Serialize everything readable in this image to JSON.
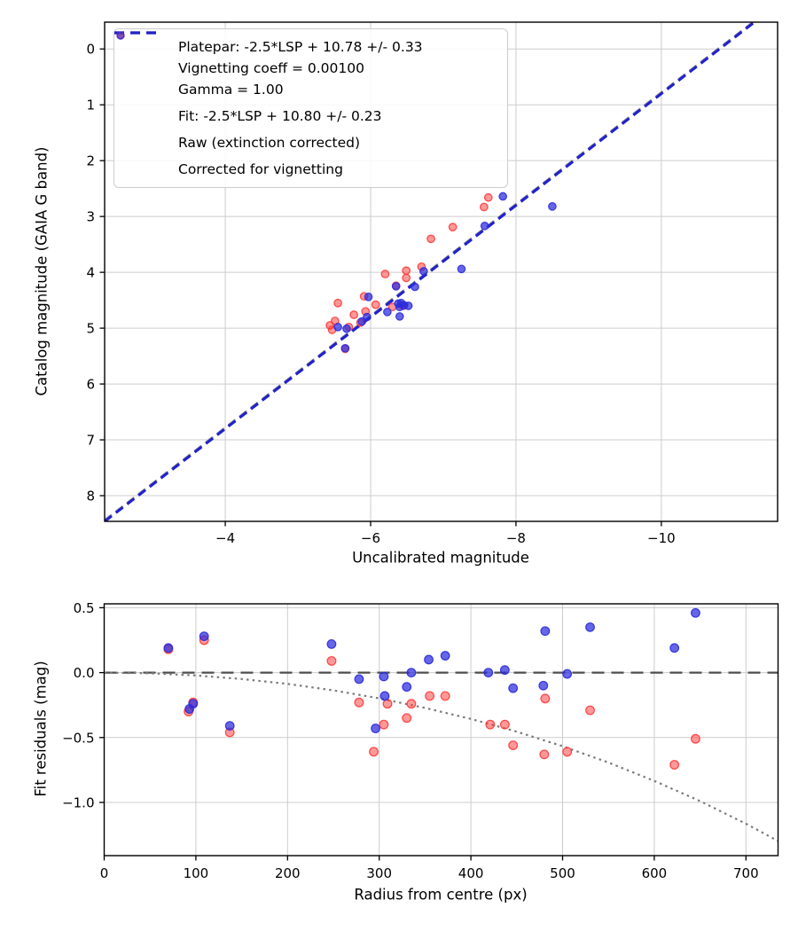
{
  "figure": {
    "background": "#ffffff"
  },
  "colors": {
    "grid": "#cccccc",
    "spine": "#000000",
    "tick_text": "#000000",
    "raw": "#ff3333",
    "corrected": "#2b2bdd",
    "fit_line": "#2222cc",
    "platepar_line": "#999999",
    "zero_line": "#4d4d4d",
    "model_curve": "#7a7a7a"
  },
  "legend": {
    "entries": [
      {
        "marker": "dash",
        "color": "#999999",
        "label": "Platepar: -2.5*LSP + 10.78 +/- 0.33\nVignetting coeff = 0.00100\nGamma = 1.00"
      },
      {
        "marker": "dash",
        "color": "#2222cc",
        "label": "Fit: -2.5*LSP + 10.80 +/- 0.23"
      },
      {
        "marker": "dot",
        "color": "#ff3333",
        "label": "Raw (extinction corrected)"
      },
      {
        "marker": "dot",
        "color": "#2b2bdd",
        "label": "Corrected for vignetting"
      }
    ]
  },
  "chart_data": [
    {
      "type": "scatter",
      "title": "",
      "xlabel": "Uncalibrated magnitude",
      "ylabel": "Catalog magnitude (GAIA G band)",
      "xlim": [
        -2.34,
        -11.6
      ],
      "ylim": [
        -0.48,
        8.46
      ],
      "x_axis_inverted": true,
      "y_axis_inverted": true,
      "grid": true,
      "legend_position": "upper left",
      "xticks": {
        "values": [
          -4,
          -6,
          -8,
          -10
        ],
        "labels": [
          "−4",
          "−6",
          "−8",
          "−10"
        ]
      },
      "yticks": {
        "values": [
          0,
          1,
          2,
          3,
          4,
          5,
          6,
          7,
          8
        ],
        "labels": [
          "0",
          "1",
          "2",
          "3",
          "4",
          "5",
          "6",
          "7",
          "8"
        ]
      },
      "lines": [
        {
          "key": "platepar",
          "name": "platepar-line",
          "label": "Platepar: -2.5*LSP + 10.78 +/- 0.33",
          "slope": 1.0,
          "intercept": 10.78,
          "style": "dashed",
          "color": "#999999",
          "width": 2.6
        },
        {
          "key": "fit",
          "name": "fit-line",
          "label": "Fit: -2.5*LSP + 10.80 +/- 0.23",
          "slope": 1.0,
          "intercept": 10.8,
          "style": "dashed",
          "color": "#2222cc",
          "width": 3.2
        }
      ],
      "series": [
        {
          "key": "raw",
          "name": "Raw (extinction corrected)",
          "color": "#ff3333",
          "points": [
            [
              -7.62,
              2.66
            ],
            [
              -7.56,
              2.83
            ],
            [
              -7.13,
              3.19
            ],
            [
              -6.83,
              3.4
            ],
            [
              -6.7,
              3.9
            ],
            [
              -6.49,
              3.97
            ],
            [
              -6.49,
              4.1
            ],
            [
              -6.2,
              4.03
            ],
            [
              -6.35,
              4.24
            ],
            [
              -6.45,
              4.6
            ],
            [
              -6.3,
              4.62
            ],
            [
              -6.07,
              4.58
            ],
            [
              -5.91,
              4.43
            ],
            [
              -5.93,
              4.7
            ],
            [
              -5.77,
              4.76
            ],
            [
              -5.86,
              4.9
            ],
            [
              -5.7,
              4.98
            ],
            [
              -5.55,
              4.55
            ],
            [
              -5.51,
              4.87
            ],
            [
              -5.47,
              5.03
            ],
            [
              -5.44,
              4.95
            ],
            [
              -5.65,
              5.37
            ]
          ]
        },
        {
          "key": "corrected",
          "name": "Corrected for vignetting",
          "color": "#2b2bdd",
          "points": [
            [
              -7.82,
              2.64
            ],
            [
              -8.5,
              2.82
            ],
            [
              -7.57,
              3.17
            ],
            [
              -7.25,
              3.94
            ],
            [
              -6.73,
              3.98
            ],
            [
              -6.61,
              4.26
            ],
            [
              -6.35,
              4.25
            ],
            [
              -6.23,
              4.71
            ],
            [
              -6.38,
              4.56
            ],
            [
              -6.42,
              4.55
            ],
            [
              -6.46,
              4.59
            ],
            [
              -6.4,
              4.62
            ],
            [
              -6.52,
              4.6
            ],
            [
              -6.4,
              4.79
            ],
            [
              -5.97,
              4.44
            ],
            [
              -5.95,
              4.8
            ],
            [
              -5.88,
              4.88
            ],
            [
              -5.67,
              5.01
            ],
            [
              -5.55,
              4.98
            ],
            [
              -5.65,
              5.36
            ]
          ]
        }
      ]
    },
    {
      "type": "scatter",
      "title": "",
      "xlabel": "Radius from centre (px)",
      "ylabel": "Fit residuals (mag)",
      "xlim": [
        0,
        735
      ],
      "ylim": [
        0.53,
        -1.41
      ],
      "grid": true,
      "xticks": {
        "values": [
          0,
          100,
          200,
          300,
          400,
          500,
          600,
          700
        ],
        "labels": [
          "0",
          "100",
          "200",
          "300",
          "400",
          "500",
          "600",
          "700"
        ]
      },
      "yticks": {
        "values": [
          0.5,
          0.0,
          -0.5,
          -1.0
        ],
        "labels": [
          "0.5",
          "0.0",
          "−0.5",
          "−1.0"
        ]
      },
      "zero_line": {
        "name": "zero-residual-line",
        "y": 0.0,
        "style": "dashed",
        "color": "#4d4d4d",
        "width": 2.2
      },
      "model_curve": {
        "name": "vignetting-model-curve",
        "style": "dotted",
        "color": "#7a7a7a",
        "width": 2.2,
        "points": [
          [
            0,
            0
          ],
          [
            50,
            -0.005
          ],
          [
            100,
            -0.022
          ],
          [
            150,
            -0.049
          ],
          [
            200,
            -0.087
          ],
          [
            250,
            -0.137
          ],
          [
            300,
            -0.198
          ],
          [
            350,
            -0.272
          ],
          [
            400,
            -0.357
          ],
          [
            450,
            -0.455
          ],
          [
            500,
            -0.567
          ],
          [
            550,
            -0.693
          ],
          [
            600,
            -0.834
          ],
          [
            650,
            -0.99
          ],
          [
            700,
            -1.164
          ],
          [
            735,
            -1.297
          ]
        ]
      },
      "series": [
        {
          "key": "raw",
          "name": "Raw (extinction corrected)",
          "color": "#ff3333",
          "points": [
            [
              70,
              0.18
            ],
            [
              92,
              -0.3
            ],
            [
              97,
              -0.23
            ],
            [
              109,
              0.25
            ],
            [
              137,
              -0.46
            ],
            [
              248,
              0.09
            ],
            [
              278,
              -0.23
            ],
            [
              294,
              -0.61
            ],
            [
              305,
              -0.4
            ],
            [
              309,
              -0.24
            ],
            [
              330,
              -0.35
            ],
            [
              335,
              -0.24
            ],
            [
              355,
              -0.18
            ],
            [
              372,
              -0.18
            ],
            [
              421,
              -0.4
            ],
            [
              437,
              -0.4
            ],
            [
              446,
              -0.56
            ],
            [
              480,
              -0.63
            ],
            [
              481,
              -0.2
            ],
            [
              505,
              -0.61
            ],
            [
              530,
              -0.29
            ],
            [
              622,
              -0.71
            ],
            [
              645,
              -0.51
            ]
          ]
        },
        {
          "key": "corrected",
          "name": "Corrected for vignetting",
          "color": "#2b2bdd",
          "points": [
            [
              70,
              0.19
            ],
            [
              93,
              -0.28
            ],
            [
              97,
              -0.24
            ],
            [
              109,
              0.28
            ],
            [
              137,
              -0.41
            ],
            [
              248,
              0.22
            ],
            [
              278,
              -0.05
            ],
            [
              296,
              -0.43
            ],
            [
              305,
              -0.03
            ],
            [
              306,
              -0.18
            ],
            [
              330,
              -0.11
            ],
            [
              335,
              0.0
            ],
            [
              354,
              0.1
            ],
            [
              372,
              0.13
            ],
            [
              419,
              0.0
            ],
            [
              437,
              0.02
            ],
            [
              446,
              -0.12
            ],
            [
              479,
              -0.1
            ],
            [
              481,
              0.32
            ],
            [
              505,
              -0.01
            ],
            [
              530,
              0.35
            ],
            [
              622,
              0.19
            ],
            [
              645,
              0.46
            ]
          ]
        }
      ]
    }
  ]
}
